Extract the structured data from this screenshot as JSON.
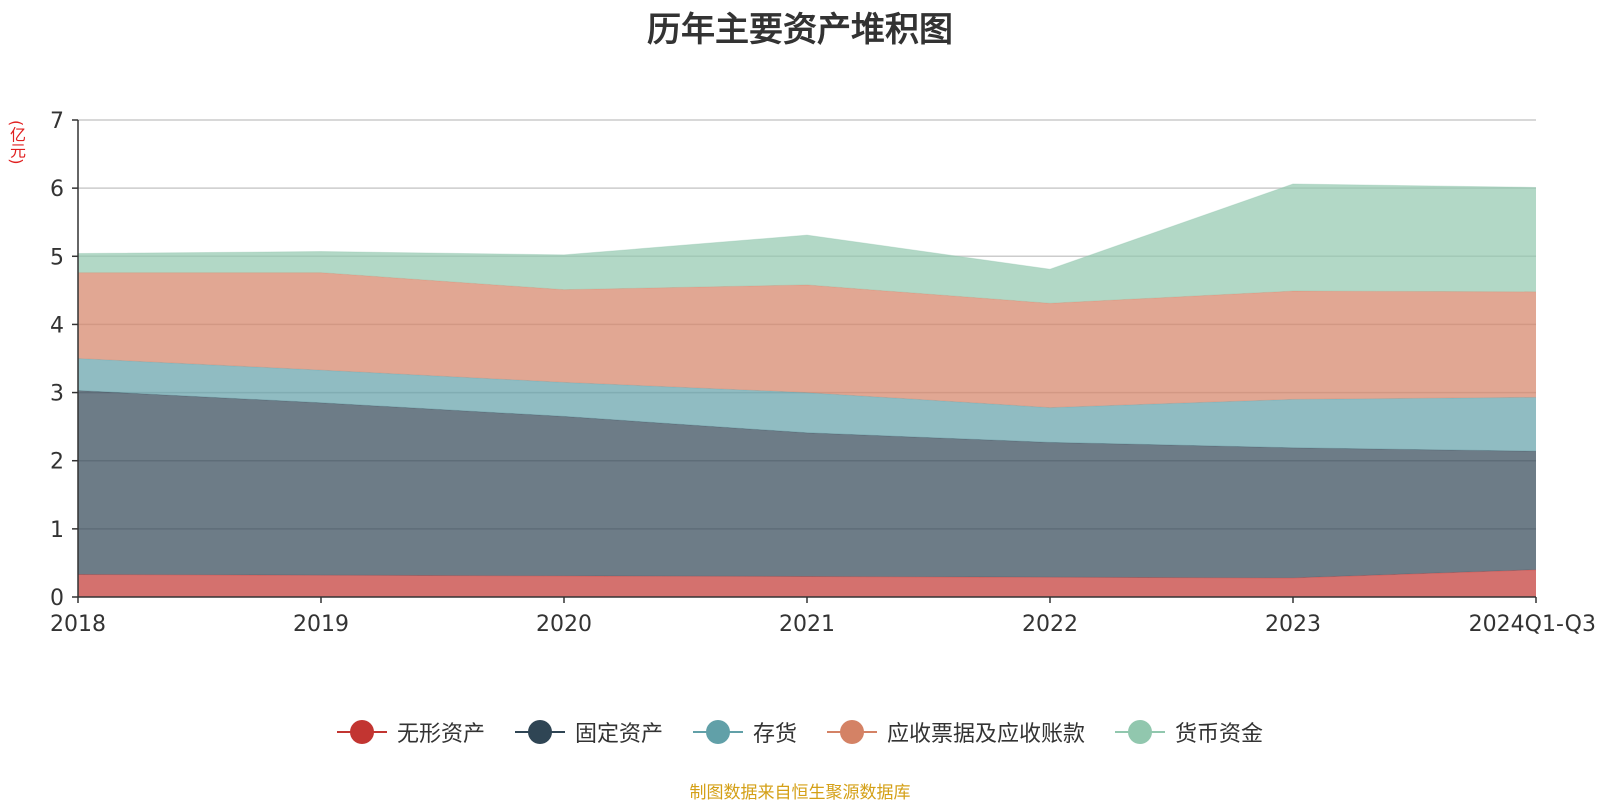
{
  "chart_data": {
    "type": "area",
    "stacked": true,
    "title": "历年主要资产堆积图",
    "y_unit": "(亿元)",
    "categories": [
      "2018",
      "2019",
      "2020",
      "2021",
      "2022",
      "2023",
      "2024Q1-Q3"
    ],
    "ylim": [
      0,
      7
    ],
    "yticks": [
      "0",
      "1",
      "2",
      "3",
      "4",
      "5",
      "6",
      "7"
    ],
    "grid": true,
    "legend_position": "bottom",
    "series": [
      {
        "name": "无形资产",
        "color": "#c23531",
        "values": [
          0.33,
          0.32,
          0.31,
          0.3,
          0.29,
          0.28,
          0.4
        ]
      },
      {
        "name": "固定资产",
        "color": "#2f4554",
        "values": [
          2.7,
          2.53,
          2.34,
          2.11,
          1.98,
          1.91,
          1.74
        ]
      },
      {
        "name": "存货",
        "color": "#61a0a8",
        "values": [
          0.47,
          0.48,
          0.5,
          0.59,
          0.51,
          0.71,
          0.79
        ]
      },
      {
        "name": "应收票据及应收账款",
        "color": "#d48265",
        "values": [
          1.26,
          1.43,
          1.36,
          1.58,
          1.53,
          1.59,
          1.55
        ]
      },
      {
        "name": "货币资金",
        "color": "#91c7ae",
        "values": [
          0.28,
          0.31,
          0.51,
          0.73,
          0.5,
          1.57,
          1.53
        ]
      }
    ]
  },
  "footer": {
    "source": "制图数据来自恒生聚源数据库"
  }
}
